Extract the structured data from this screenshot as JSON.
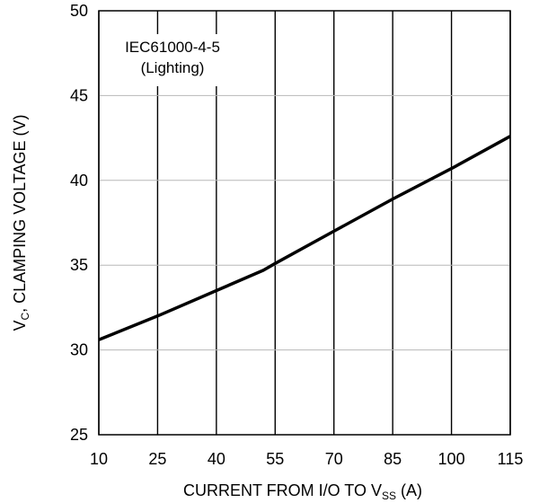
{
  "chart_data": {
    "type": "line",
    "title": "",
    "xlabel": "CURRENT FROM I/O TO V",
    "xlabel_sub": "SS",
    "xlabel_suffix": " (A)",
    "ylabel": "V",
    "ylabel_sub": "C",
    "ylabel_suffix": ", CLAMPING VOLTAGE (V)",
    "xlim": [
      10,
      115
    ],
    "ylim": [
      25,
      50
    ],
    "x_ticks": [
      10,
      25,
      40,
      55,
      70,
      85,
      100,
      115
    ],
    "x_tick_labels": [
      "10",
      "25",
      "40",
      "55",
      "70",
      "85",
      "100",
      "115"
    ],
    "y_ticks": [
      25,
      30,
      35,
      40,
      45,
      50
    ],
    "y_tick_labels": [
      "25",
      "30",
      "35",
      "40",
      "45",
      "50"
    ],
    "grid": true,
    "annotation": [
      "IEC61000-4-5",
      "(Lighting)"
    ],
    "series": [
      {
        "x": [
          10,
          25,
          40,
          52,
          55,
          70,
          85,
          100,
          115
        ],
        "y": [
          30.6,
          32.0,
          33.5,
          34.7,
          35.1,
          37.0,
          38.9,
          40.7,
          42.6
        ]
      }
    ]
  }
}
